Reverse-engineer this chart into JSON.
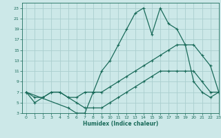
{
  "xlabel": "Humidex (Indice chaleur)",
  "background_color": "#cce8e8",
  "grid_color": "#aacece",
  "line_color": "#1a6b5a",
  "xlim": [
    -0.5,
    23
  ],
  "ylim": [
    3,
    24
  ],
  "xticks": [
    0,
    1,
    2,
    3,
    4,
    5,
    6,
    7,
    8,
    9,
    10,
    11,
    12,
    13,
    14,
    15,
    16,
    17,
    18,
    19,
    20,
    21,
    22,
    23
  ],
  "yticks": [
    3,
    5,
    7,
    9,
    11,
    13,
    15,
    17,
    19,
    21,
    23
  ],
  "lines": [
    {
      "x": [
        0,
        1,
        2,
        3,
        4,
        5,
        6,
        7,
        8,
        9,
        10,
        11,
        12,
        13,
        14,
        15,
        16,
        17,
        18,
        19,
        20,
        21,
        22,
        23
      ],
      "y": [
        7,
        5,
        6,
        7,
        7,
        6,
        5,
        4,
        4,
        4,
        5,
        6,
        7,
        8,
        9,
        10,
        11,
        11,
        11,
        11,
        11,
        9,
        7,
        7
      ]
    },
    {
      "x": [
        0,
        1,
        2,
        3,
        4,
        5,
        6,
        7,
        8,
        9,
        10,
        11,
        12,
        13,
        14,
        15,
        16,
        17,
        18,
        19,
        20,
        21,
        22,
        23
      ],
      "y": [
        7,
        6,
        6,
        7,
        7,
        6,
        6,
        7,
        7,
        7,
        8,
        9,
        10,
        11,
        12,
        13,
        14,
        15,
        16,
        16,
        16,
        14,
        12,
        7
      ]
    },
    {
      "x": [
        0,
        5,
        6,
        7,
        8,
        9,
        10,
        11,
        12,
        13,
        14,
        15,
        16,
        17,
        18,
        19,
        20,
        21,
        22,
        23
      ],
      "y": [
        7,
        4,
        3,
        3,
        7,
        11,
        13,
        16,
        19,
        22,
        23,
        18,
        23,
        20,
        19,
        16,
        9,
        7,
        6,
        7
      ]
    }
  ]
}
